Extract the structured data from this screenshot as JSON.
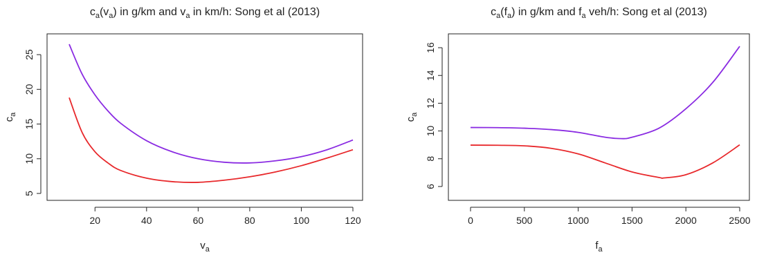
{
  "chart_data": [
    {
      "type": "line",
      "title": {
        "main": "c",
        "main_sub": "a",
        "mid1": "(v",
        "mid1_sub": "a",
        "mid2": ") in g/km and v",
        "mid2_sub": "a",
        "rest": " in km/h: Song et al (2013)"
      },
      "xlabel": {
        "main": "v",
        "sub": "a"
      },
      "ylabel": {
        "main": "c",
        "sub": "a"
      },
      "xlim": [
        10,
        120
      ],
      "ylim": [
        5,
        27
      ],
      "xticks": [
        20,
        40,
        60,
        80,
        100,
        120
      ],
      "yticks": [
        5,
        10,
        15,
        20,
        25
      ],
      "xtick_labels": [
        "20",
        "40",
        "60",
        "80",
        "100",
        "120"
      ],
      "ytick_labels": [
        "5",
        "10",
        "15",
        "20",
        "25"
      ],
      "series": [
        {
          "color": "#8a2be2",
          "x": [
            10,
            15,
            20,
            25,
            30,
            40,
            50,
            60,
            70,
            80,
            90,
            100,
            110,
            120
          ],
          "y": [
            26.5,
            22.2,
            19.2,
            16.9,
            15.1,
            12.6,
            11.0,
            10.0,
            9.5,
            9.4,
            9.7,
            10.3,
            11.3,
            12.7
          ]
        },
        {
          "color": "#e8282b",
          "x": [
            10,
            15,
            20,
            25,
            30,
            40,
            50,
            60,
            70,
            80,
            90,
            100,
            110,
            120
          ],
          "y": [
            18.8,
            13.8,
            11.0,
            9.4,
            8.3,
            7.2,
            6.7,
            6.6,
            6.9,
            7.4,
            8.1,
            9.0,
            10.1,
            11.3
          ]
        }
      ]
    },
    {
      "type": "line",
      "title": {
        "main": "c",
        "main_sub": "a",
        "mid1": "(f",
        "mid1_sub": "a",
        "mid2": ") in g/km and f",
        "mid2_sub": "a",
        "rest": " veh/h: Song et al (2013)"
      },
      "xlabel": {
        "main": "f",
        "sub": "a"
      },
      "ylabel": {
        "main": "c",
        "sub": "a"
      },
      "xlim": [
        0,
        2500
      ],
      "ylim": [
        5.5,
        16.5
      ],
      "xticks": [
        0,
        500,
        1000,
        1500,
        2000,
        2500
      ],
      "yticks": [
        6,
        8,
        10,
        12,
        14,
        16
      ],
      "xtick_labels": [
        "0",
        "500",
        "1000",
        "1500",
        "2000",
        "2500"
      ],
      "ytick_labels": [
        "6",
        "8",
        "10",
        "12",
        "14",
        "16"
      ],
      "series": [
        {
          "color": "#8a2be2",
          "x": [
            0,
            250,
            500,
            750,
            1000,
            1250,
            1400,
            1500,
            1750,
            2000,
            2250,
            2500
          ],
          "y": [
            10.25,
            10.24,
            10.2,
            10.1,
            9.9,
            9.55,
            9.45,
            9.55,
            10.2,
            11.6,
            13.5,
            16.1
          ]
        },
        {
          "color": "#e8282b",
          "x": [
            0,
            250,
            500,
            750,
            1000,
            1250,
            1500,
            1750,
            1800,
            2000,
            2250,
            2500
          ],
          "y": [
            8.98,
            8.97,
            8.93,
            8.75,
            8.35,
            7.7,
            7.05,
            6.65,
            6.62,
            6.85,
            7.7,
            9.0
          ]
        }
      ]
    }
  ]
}
